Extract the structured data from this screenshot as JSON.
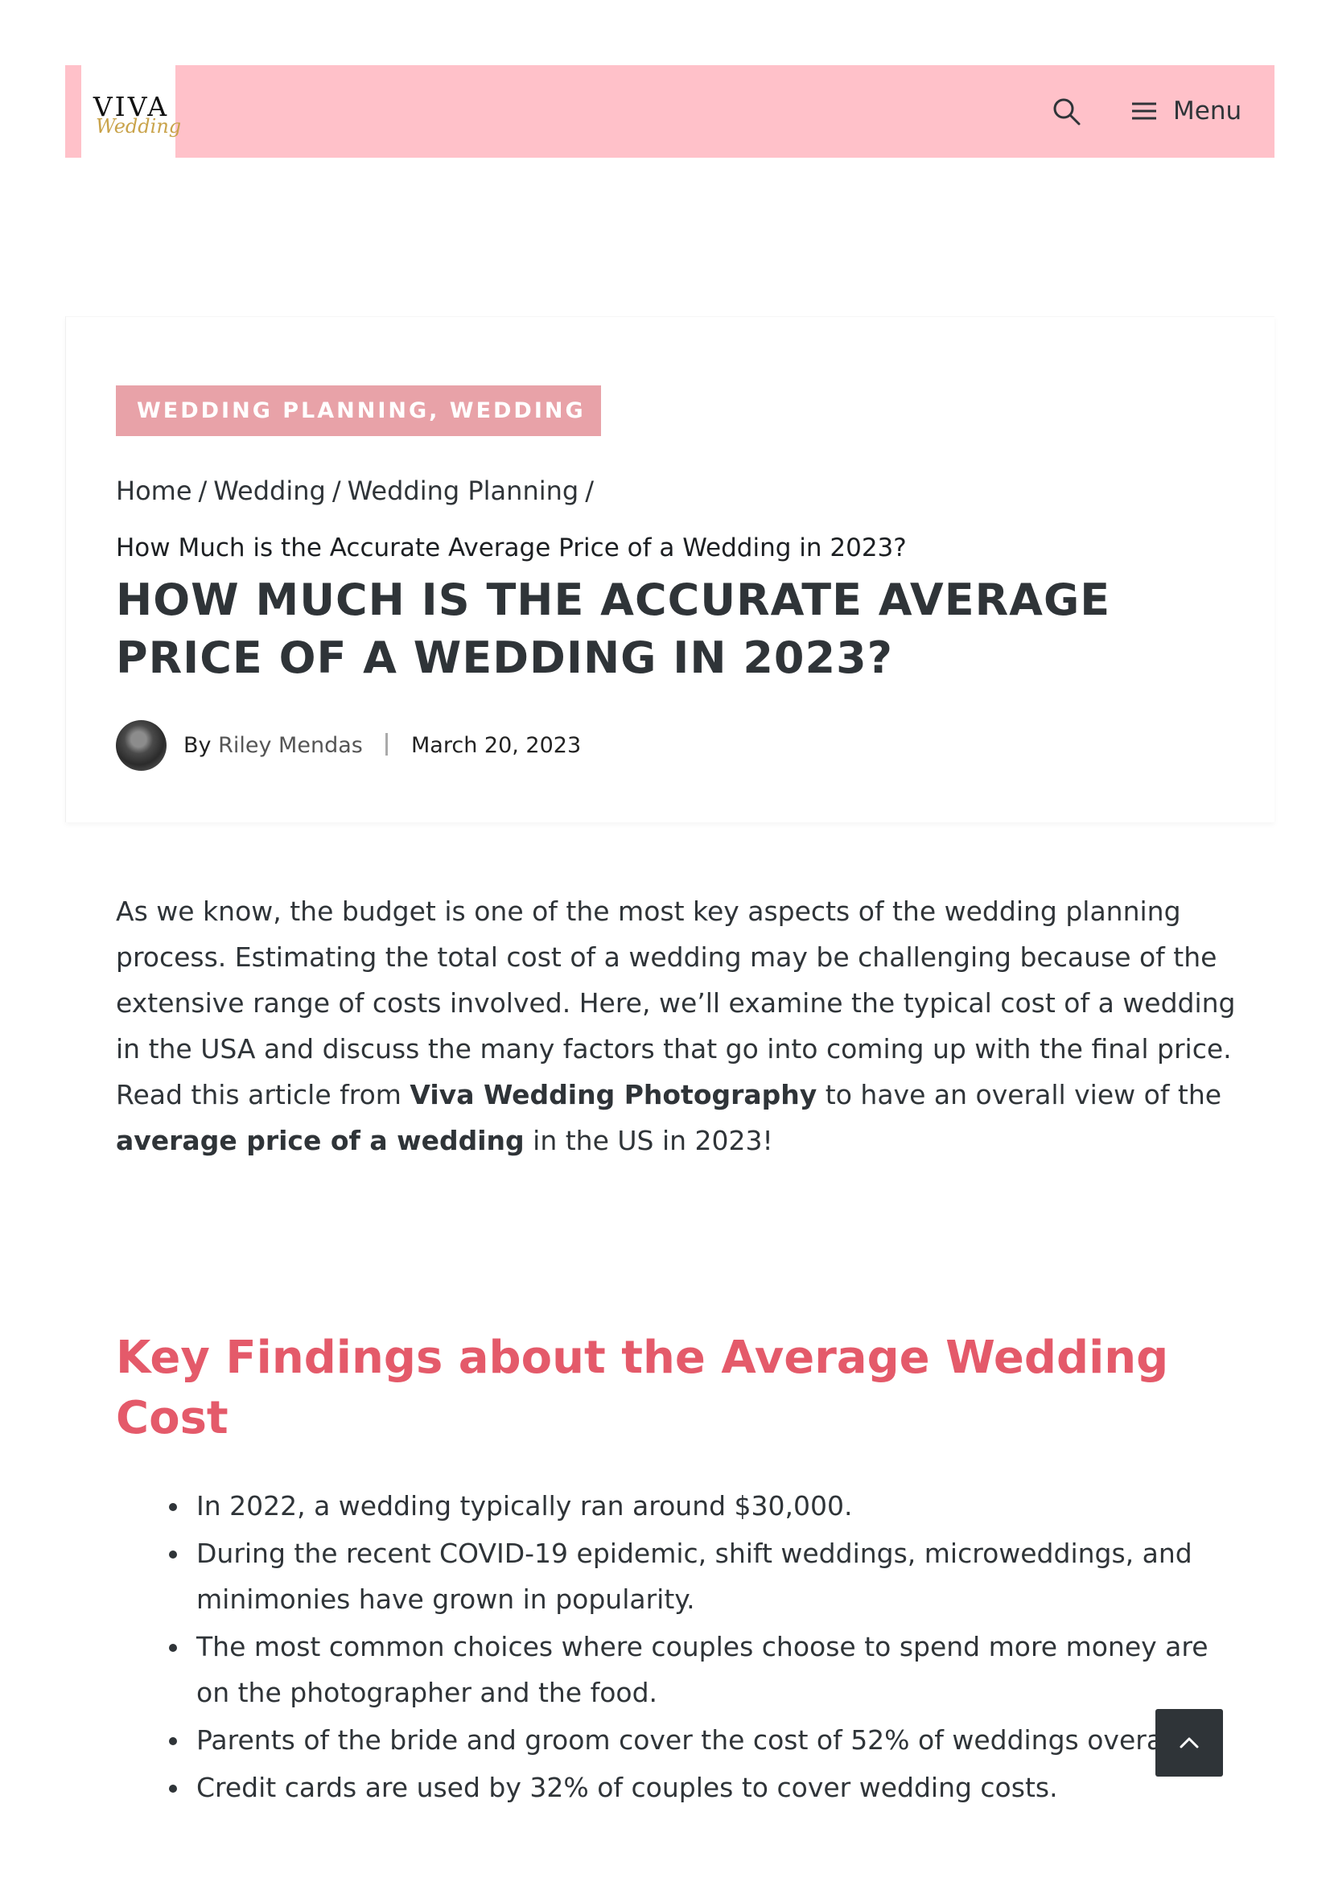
{
  "header": {
    "logo_top": "VIVA",
    "logo_bottom": "Wedding",
    "search_icon": "search-icon",
    "menu_icon": "hamburger-icon",
    "menu_label": "Menu",
    "bg_color": "#ffc1c9"
  },
  "article": {
    "categories": "WEDDING PLANNING, WEDDING",
    "breadcrumb": {
      "items": [
        "Home",
        "Wedding",
        "Wedding Planning"
      ],
      "separator": "/",
      "current": "How Much is the Accurate Average Price of a Wedding in 2023?"
    },
    "title": "HOW MUCH IS THE ACCURATE AVERAGE PRICE OF A WEDDING IN 2023?",
    "byline_prefix": "By",
    "author": "Riley Mendas",
    "date": "March 20, 2023"
  },
  "intro": {
    "part1": "As we know, the budget is one of the most key aspects of the wedding planning process. Estimating the total cost of a wedding may be challenging because of the extensive range of costs involved. Here, we’ll examine the typical cost of a wedding in the USA and discuss the many factors that go into coming up with the final price. Read this article from ",
    "brand": "Viva Wedding Photography",
    "part2": " to have an overall view of the ",
    "keyword": "average price of a wedding",
    "part3": " in the US in 2023!"
  },
  "key_findings": {
    "heading": "Key Findings about the Average Wedding Cost",
    "items": [
      "In 2022, a wedding typically ran around $30,000.",
      "During the recent COVID-19 epidemic, shift weddings, microweddings, and minimonies have grown in popularity.",
      "The most common choices where couples choose to spend more money are on the photographer and the food.",
      "Parents of the bride and groom cover the cost of 52% of weddings overall.",
      "Credit cards are used by 32% of couples to cover wedding costs."
    ]
  },
  "back_to_top_icon": "chevron-up-icon",
  "colors": {
    "accent_heading": "#e45a6a",
    "badge": "#e8a2a8",
    "dark": "#2f3438"
  }
}
